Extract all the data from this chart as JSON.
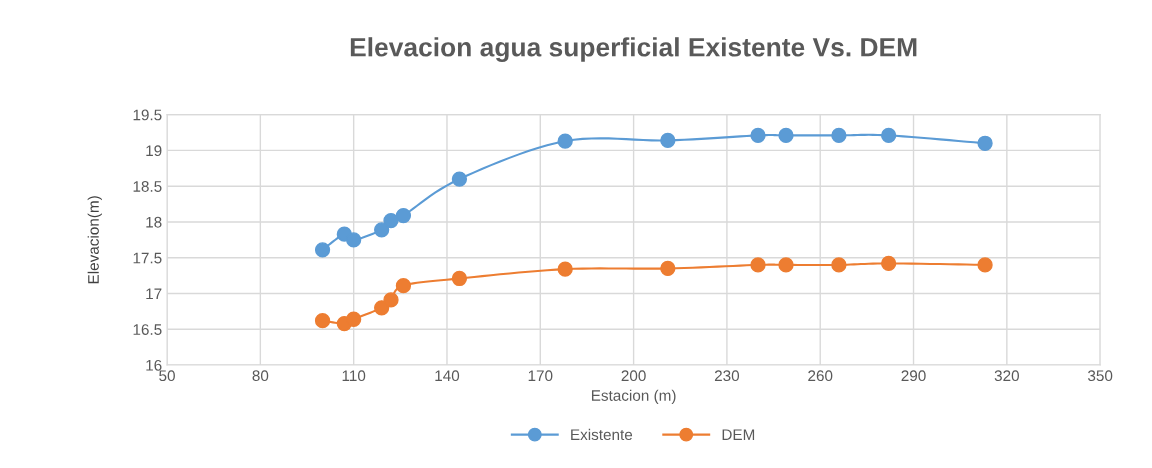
{
  "chart_data": {
    "type": "line",
    "title": "Elevacion agua superficial Existente Vs. DEM",
    "xlabel": "Estacion (m)",
    "ylabel": "Elevacion(m)",
    "x": [
      100,
      107,
      110,
      119,
      122,
      126,
      144,
      178,
      211,
      240,
      249,
      266,
      282,
      313
    ],
    "series": [
      {
        "name": "Existente",
        "color": "#5b9bd5",
        "values": [
          17.61,
          17.83,
          17.75,
          17.89,
          18.02,
          18.09,
          18.6,
          19.13,
          19.14,
          19.21,
          19.21,
          19.21,
          19.21,
          19.1
        ]
      },
      {
        "name": "DEM",
        "color": "#ed7d31",
        "values": [
          16.62,
          16.58,
          16.64,
          16.8,
          16.91,
          17.11,
          17.21,
          17.34,
          17.35,
          17.4,
          17.4,
          17.4,
          17.42,
          17.4
        ]
      }
    ],
    "xlim": [
      50,
      350
    ],
    "xticks": [
      50,
      80,
      110,
      140,
      170,
      200,
      230,
      260,
      290,
      320,
      350
    ],
    "ylim": [
      16,
      19.5
    ],
    "yticks": [
      16,
      16.5,
      17,
      17.5,
      18,
      18.5,
      19,
      19.5
    ],
    "grid": true,
    "legend": "bottom",
    "marker": "circle",
    "line_style": "solid"
  }
}
